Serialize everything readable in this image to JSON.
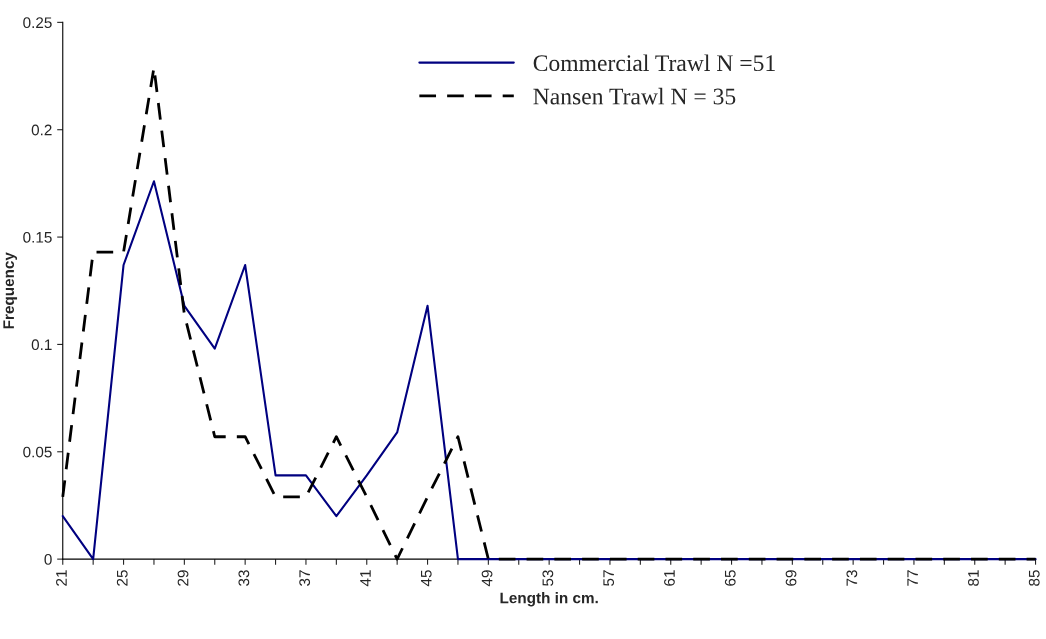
{
  "chart_data": {
    "type": "line",
    "xlabel": "Length in cm.",
    "ylabel": "Frequency",
    "categories": [
      "21",
      null,
      "25",
      null,
      "29",
      null,
      "33",
      null,
      "37",
      null,
      "41",
      null,
      "45",
      null,
      "49",
      null,
      "53",
      null,
      "57",
      null,
      "61",
      null,
      "65",
      null,
      "69",
      null,
      "73",
      null,
      "77",
      null,
      "81",
      null,
      "85"
    ],
    "series": [
      {
        "name": "Commercial Trawl N =51",
        "color": "#000080",
        "line_style": "solid",
        "values": [
          0.02,
          0,
          0.137,
          0.176,
          0.118,
          0.098,
          0.137,
          0.039,
          0.039,
          0.02,
          0.039,
          0.059,
          0.118,
          0,
          0,
          0,
          0,
          0,
          0,
          0,
          0,
          0,
          0,
          0,
          0,
          0,
          0,
          0,
          0,
          0,
          0,
          0,
          0
        ]
      },
      {
        "name": "Nansen Trawl N = 35",
        "color": "#000000",
        "line_style": "dashed",
        "values": [
          0.029,
          0.143,
          0.143,
          0.229,
          0.114,
          0.057,
          0.057,
          0.029,
          0.029,
          0.057,
          0.029,
          0,
          0.029,
          0.057,
          0,
          0,
          0,
          0,
          0,
          0,
          0,
          0,
          0,
          0,
          0,
          0,
          0,
          0,
          0,
          0,
          0,
          0,
          0
        ]
      }
    ],
    "ylim": [
      0,
      0.25
    ],
    "yticks": [
      0,
      0.05,
      0.1,
      0.15,
      0.2,
      0.25
    ],
    "grid": false,
    "legend": "top center",
    "marker": "none"
  }
}
